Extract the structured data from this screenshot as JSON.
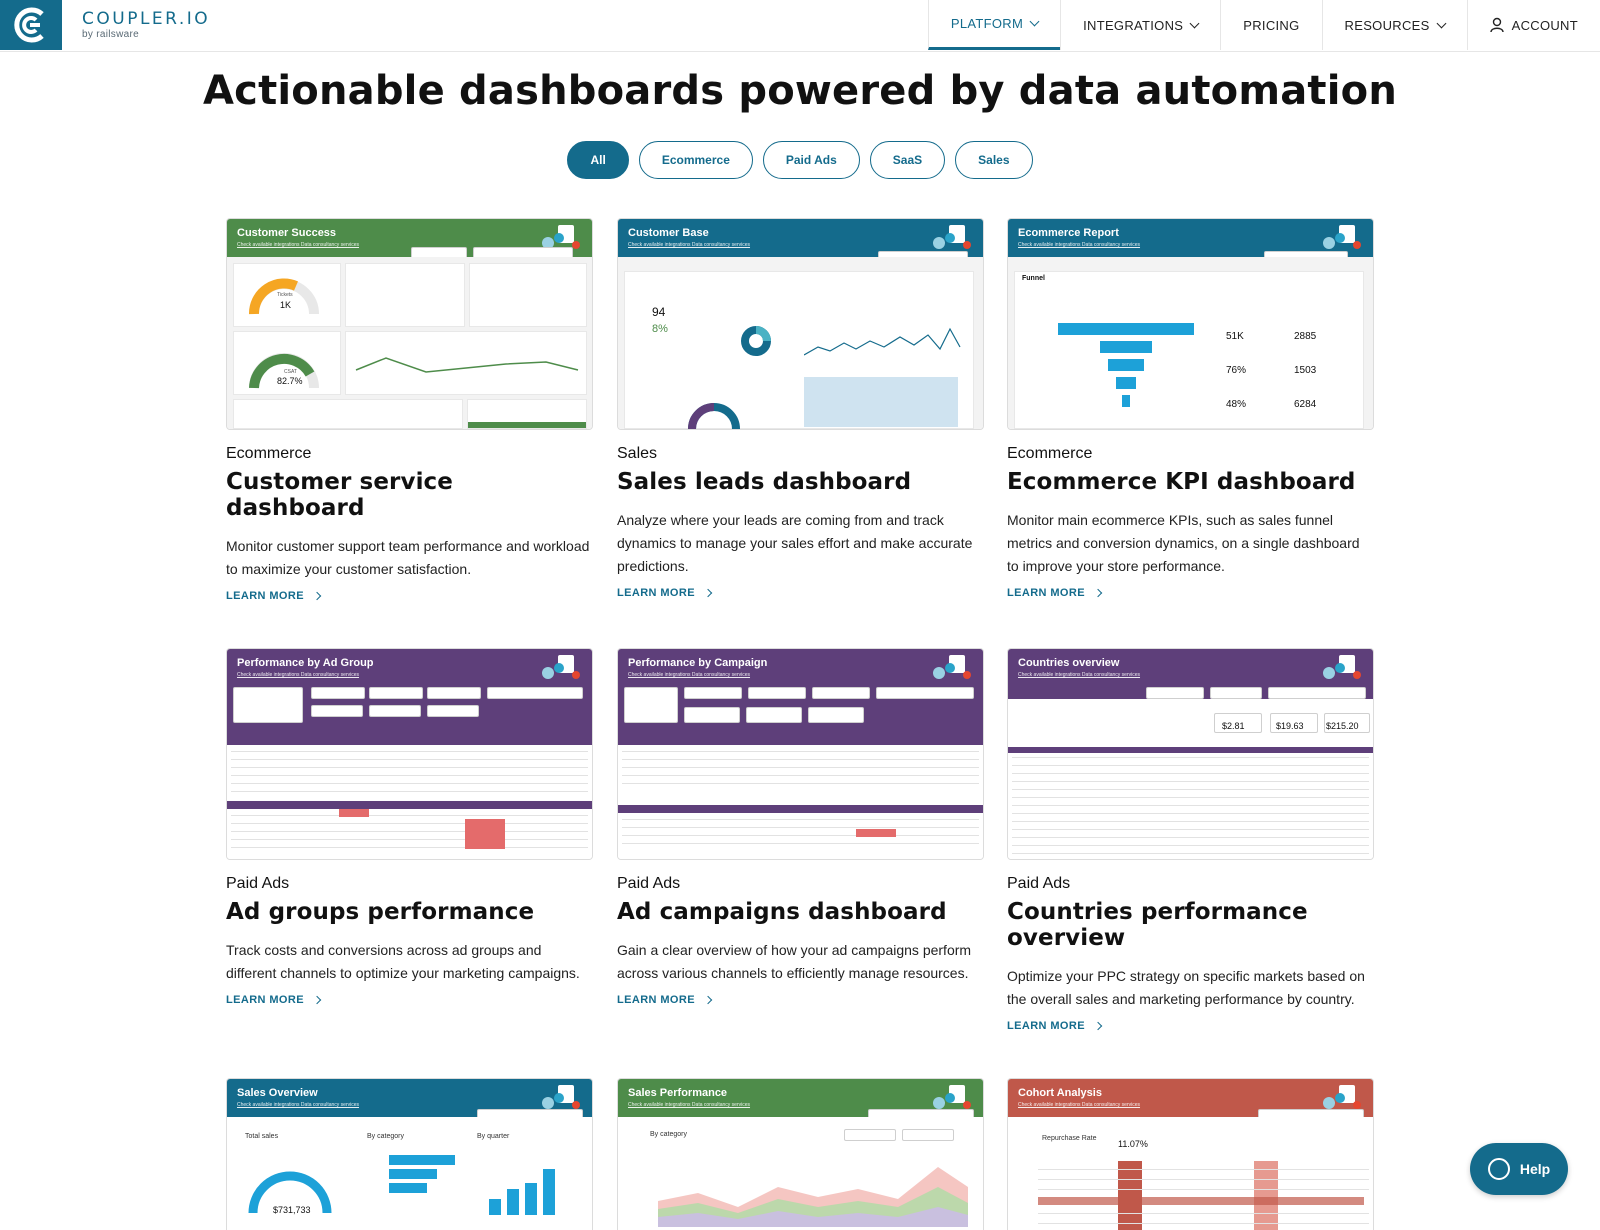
{
  "brand": {
    "name": "COUPLER.IO",
    "sub": "by railsware",
    "color": "#146b8c"
  },
  "nav": {
    "items": [
      {
        "label": "PLATFORM",
        "dropdown": true,
        "active": true
      },
      {
        "label": "INTEGRATIONS",
        "dropdown": true
      },
      {
        "label": "PRICING",
        "dropdown": false
      },
      {
        "label": "RESOURCES",
        "dropdown": true
      }
    ],
    "account": {
      "label": "ACCOUNT",
      "icon": "user-icon"
    }
  },
  "headline": "Actionable dashboards powered by data automation",
  "filters": {
    "items": [
      "All",
      "Ecommerce",
      "Paid Ads",
      "SaaS",
      "Sales"
    ],
    "selected": "All"
  },
  "cards": [
    {
      "category": "Ecommerce",
      "title": "Customer service dashboard",
      "description": "Monitor customer support team performance and workload to maximize your customer satisfaction.",
      "link": "LEARN MORE",
      "thumb_title": "Customer Success",
      "thumb_color": "#4e8c4a"
    },
    {
      "category": "Sales",
      "title": "Sales leads dashboard",
      "description": "Analyze where your leads are coming from and track dynamics to manage your sales effort and make accurate predictions.",
      "link": "LEARN MORE",
      "thumb_title": "Customer Base",
      "thumb_color": "#146b8c"
    },
    {
      "category": "Ecommerce",
      "title": "Ecommerce KPI dashboard",
      "description": "Monitor main ecommerce KPIs, such as sales funnel metrics and conversion dynamics, on a single dashboard to improve your store performance.",
      "link": "LEARN MORE",
      "thumb_title": "Ecommerce Report",
      "thumb_color": "#146b8c"
    },
    {
      "category": "Paid Ads",
      "title": "Ad groups performance",
      "description": "Track costs and conversions across ad groups and different channels to optimize your marketing campaigns.",
      "link": "LEARN MORE",
      "thumb_title": "Performance by Ad Group",
      "thumb_color": "#5e3f7a"
    },
    {
      "category": "Paid Ads",
      "title": "Ad campaigns dashboard",
      "description": "Gain a clear overview of how your ad campaigns perform across various channels to efficiently manage resources.",
      "link": "LEARN MORE",
      "thumb_title": "Performance by Campaign",
      "thumb_color": "#5e3f7a"
    },
    {
      "category": "Paid Ads",
      "title": "Countries performance overview",
      "description": "Optimize your PPC strategy on specific markets based on the overall sales and marketing performance by country.",
      "link": "LEARN MORE",
      "thumb_title": "Countries overview",
      "thumb_color": "#5e3f7a"
    },
    {
      "category": "",
      "title": "",
      "description": "",
      "link": "",
      "thumb_title": "Sales Overview",
      "thumb_color": "#146b8c"
    },
    {
      "category": "",
      "title": "",
      "description": "",
      "link": "",
      "thumb_title": "Sales Performance",
      "thumb_color": "#4e8c4a"
    },
    {
      "category": "",
      "title": "",
      "description": "",
      "link": "",
      "thumb_title": "Cohort Analysis",
      "thumb_color": "#c0584a"
    }
  ],
  "thumb_links": "Check available integrations    Data consultancy services",
  "thumb_values": {
    "customer_success": {
      "gauge_label": "Tickets",
      "gauge_value": "1K",
      "csat_label": "CSAT",
      "csat_value": "82.7%"
    },
    "customer_base": {
      "leads": "94",
      "pct": "8%"
    },
    "ecommerce": {
      "funnel_title": "Funnel",
      "sessions": "51K",
      "with_add": "2885",
      "abandon": "76%",
      "checkout": "1503",
      "checkout_abandon": "48%",
      "purchase": "6284"
    },
    "countries": {
      "cpc": "$2.81",
      "cpa": "$19.63",
      "cac": "$215.20"
    },
    "sales_overview": {
      "total_label": "Total sales",
      "total_value": "$731,733",
      "by_category": "By category",
      "by_quarter": "By quarter"
    },
    "sales_performance": {
      "by_category": "By category"
    },
    "cohort": {
      "label": "Repurchase Rate",
      "value": "11.07%"
    }
  },
  "help": {
    "label": "Help",
    "icon": "chat-icon"
  }
}
